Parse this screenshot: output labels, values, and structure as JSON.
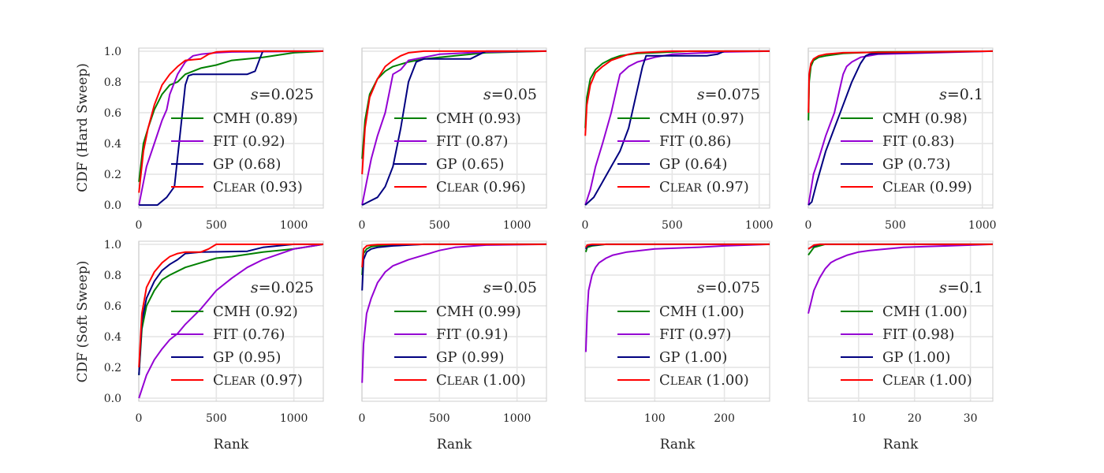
{
  "colors": {
    "CMH": "#008000",
    "FIT": "#9400d3",
    "GP": "#000080",
    "CLEAR": "#ff0000",
    "grid": "#e6e6e6",
    "frame": "#cccccc"
  },
  "row_labels": [
    "CDF (Hard Sweep)",
    "CDF (Soft Sweep)"
  ],
  "xlabel": "Rank",
  "chart_data": [
    {
      "type": "line",
      "row": 0,
      "col": 0,
      "annotation": "s=0.025",
      "s_value": "0.025",
      "xlim": [
        0,
        1190
      ],
      "ylim": [
        -0.02,
        1.02
      ],
      "xticks": [
        0,
        500,
        1000
      ],
      "yticks": [
        0.0,
        0.2,
        0.4,
        0.6,
        0.8,
        1.0
      ],
      "series": [
        {
          "key": "CMH",
          "name": "CMH (0.89)",
          "x": [
            1,
            30,
            60,
            100,
            150,
            200,
            250,
            300,
            400,
            500,
            600,
            800,
            1000,
            1190
          ],
          "y": [
            0.15,
            0.4,
            0.5,
            0.62,
            0.72,
            0.78,
            0.8,
            0.85,
            0.89,
            0.91,
            0.94,
            0.96,
            0.99,
            1.0
          ]
        },
        {
          "key": "FIT",
          "name": "FIT (0.92)",
          "x": [
            1,
            50,
            100,
            150,
            180,
            200,
            250,
            300,
            350,
            400,
            500,
            600,
            1190
          ],
          "y": [
            0.0,
            0.25,
            0.4,
            0.55,
            0.62,
            0.72,
            0.85,
            0.93,
            0.97,
            0.98,
            0.99,
            0.995,
            1.0
          ]
        },
        {
          "key": "GP",
          "name": "GP (0.68)",
          "x": [
            1,
            120,
            180,
            230,
            260,
            300,
            320,
            350,
            700,
            750,
            780,
            800,
            1000,
            1190
          ],
          "y": [
            0.0,
            0.0,
            0.05,
            0.12,
            0.4,
            0.78,
            0.84,
            0.85,
            0.85,
            0.87,
            0.95,
            1.0,
            1.0,
            1.0
          ]
        },
        {
          "key": "CLEAR",
          "name": "CLEAR (0.93)",
          "x": [
            1,
            30,
            60,
            100,
            150,
            200,
            250,
            300,
            400,
            450,
            500,
            600,
            1190
          ],
          "y": [
            0.08,
            0.35,
            0.5,
            0.65,
            0.78,
            0.85,
            0.9,
            0.94,
            0.95,
            0.98,
            0.995,
            1.0,
            1.0
          ]
        }
      ]
    },
    {
      "type": "line",
      "row": 0,
      "col": 1,
      "annotation": "s=0.05",
      "s_value": "0.05",
      "xlim": [
        0,
        1190
      ],
      "ylim": [
        -0.02,
        1.02
      ],
      "xticks": [
        0,
        500,
        1000
      ],
      "yticks": [
        0.0,
        0.2,
        0.4,
        0.6,
        0.8,
        1.0
      ],
      "series": [
        {
          "key": "CMH",
          "name": "CMH (0.93)",
          "x": [
            1,
            20,
            50,
            100,
            150,
            200,
            300,
            400,
            600,
            800,
            1190
          ],
          "y": [
            0.3,
            0.55,
            0.72,
            0.82,
            0.87,
            0.9,
            0.93,
            0.95,
            0.97,
            0.99,
            1.0
          ]
        },
        {
          "key": "FIT",
          "name": "FIT (0.87)",
          "x": [
            1,
            30,
            60,
            100,
            150,
            180,
            200,
            250,
            300,
            400,
            500,
            800,
            1190
          ],
          "y": [
            0.0,
            0.15,
            0.3,
            0.45,
            0.6,
            0.75,
            0.85,
            0.88,
            0.94,
            0.96,
            0.98,
            0.995,
            1.0
          ]
        },
        {
          "key": "GP",
          "name": "GP (0.65)",
          "x": [
            1,
            100,
            150,
            200,
            250,
            300,
            350,
            400,
            700,
            760,
            800,
            1190
          ],
          "y": [
            0.0,
            0.05,
            0.12,
            0.25,
            0.5,
            0.8,
            0.93,
            0.95,
            0.95,
            0.98,
            1.0,
            1.0
          ]
        },
        {
          "key": "CLEAR",
          "name": "CLEAR (0.96)",
          "x": [
            1,
            20,
            50,
            100,
            150,
            200,
            250,
            300,
            400,
            1190
          ],
          "y": [
            0.2,
            0.5,
            0.7,
            0.82,
            0.9,
            0.94,
            0.97,
            0.99,
            1.0,
            1.0
          ]
        }
      ]
    },
    {
      "type": "line",
      "row": 0,
      "col": 2,
      "annotation": "s=0.075",
      "s_value": "0.075",
      "xlim": [
        0,
        1060
      ],
      "ylim": [
        -0.02,
        1.02
      ],
      "xticks": [
        0,
        500,
        1000
      ],
      "yticks": [
        0.0,
        0.2,
        0.4,
        0.6,
        0.8,
        1.0
      ],
      "series": [
        {
          "key": "CMH",
          "name": "CMH (0.97)",
          "x": [
            1,
            10,
            30,
            60,
            100,
            150,
            200,
            300,
            400,
            600,
            1060
          ],
          "y": [
            0.5,
            0.7,
            0.82,
            0.88,
            0.92,
            0.95,
            0.97,
            0.985,
            0.99,
            1.0,
            1.0
          ]
        },
        {
          "key": "FIT",
          "name": "FIT (0.86)",
          "x": [
            1,
            30,
            60,
            100,
            150,
            180,
            200,
            250,
            300,
            400,
            500,
            800,
            1060
          ],
          "y": [
            0.0,
            0.1,
            0.25,
            0.4,
            0.6,
            0.75,
            0.85,
            0.9,
            0.93,
            0.96,
            0.98,
            0.995,
            1.0
          ]
        },
        {
          "key": "GP",
          "name": "GP (0.64)",
          "x": [
            1,
            50,
            100,
            150,
            200,
            250,
            300,
            330,
            350,
            400,
            700,
            760,
            800,
            1060
          ],
          "y": [
            0.0,
            0.05,
            0.15,
            0.25,
            0.35,
            0.5,
            0.75,
            0.9,
            0.97,
            0.97,
            0.97,
            0.98,
            1.0,
            1.0
          ]
        },
        {
          "key": "CLEAR",
          "name": "CLEAR (0.97)",
          "x": [
            1,
            10,
            30,
            60,
            100,
            150,
            200,
            250,
            300,
            500,
            1060
          ],
          "y": [
            0.45,
            0.65,
            0.78,
            0.86,
            0.9,
            0.94,
            0.96,
            0.98,
            0.99,
            1.0,
            1.0
          ]
        }
      ]
    },
    {
      "type": "line",
      "row": 0,
      "col": 3,
      "annotation": "s=0.1",
      "s_value": "0.1",
      "xlim": [
        0,
        1060
      ],
      "ylim": [
        -0.02,
        1.02
      ],
      "xticks": [
        0,
        500,
        1000
      ],
      "yticks": [
        0.0,
        0.2,
        0.4,
        0.6,
        0.8,
        1.0
      ],
      "series": [
        {
          "key": "CMH",
          "name": "CMH (0.98)",
          "x": [
            1,
            5,
            15,
            30,
            60,
            100,
            200,
            400,
            1060
          ],
          "y": [
            0.55,
            0.8,
            0.9,
            0.94,
            0.96,
            0.97,
            0.985,
            0.995,
            1.0
          ]
        },
        {
          "key": "FIT",
          "name": "FIT (0.83)",
          "x": [
            1,
            30,
            60,
            100,
            150,
            180,
            200,
            220,
            250,
            300,
            400,
            1060
          ],
          "y": [
            0.0,
            0.2,
            0.3,
            0.45,
            0.6,
            0.75,
            0.85,
            0.9,
            0.93,
            0.96,
            0.98,
            1.0
          ]
        },
        {
          "key": "GP",
          "name": "GP (0.73)",
          "x": [
            1,
            20,
            50,
            100,
            150,
            200,
            250,
            300,
            330,
            350,
            400,
            500,
            1060
          ],
          "y": [
            0.0,
            0.02,
            0.15,
            0.35,
            0.5,
            0.65,
            0.8,
            0.92,
            0.97,
            0.98,
            0.985,
            0.99,
            1.0
          ]
        },
        {
          "key": "CLEAR",
          "name": "CLEAR (0.99)",
          "x": [
            1,
            5,
            15,
            30,
            60,
            100,
            200,
            1060
          ],
          "y": [
            0.6,
            0.85,
            0.92,
            0.95,
            0.97,
            0.98,
            0.99,
            1.0
          ]
        }
      ]
    },
    {
      "type": "line",
      "row": 1,
      "col": 0,
      "annotation": "s=0.025",
      "s_value": "0.025",
      "xlim": [
        0,
        1190
      ],
      "ylim": [
        -0.02,
        1.02
      ],
      "xticks": [
        0,
        500,
        1000
      ],
      "yticks": [
        0.0,
        0.2,
        0.4,
        0.6,
        0.8,
        1.0
      ],
      "series": [
        {
          "key": "CMH",
          "name": "CMH (0.92)",
          "x": [
            1,
            20,
            50,
            100,
            150,
            200,
            300,
            400,
            500,
            600,
            800,
            1000,
            1190
          ],
          "y": [
            0.15,
            0.45,
            0.6,
            0.7,
            0.77,
            0.8,
            0.85,
            0.88,
            0.91,
            0.92,
            0.95,
            0.97,
            1.0
          ]
        },
        {
          "key": "FIT",
          "name": "FIT (0.76)",
          "x": [
            1,
            50,
            100,
            150,
            200,
            250,
            300,
            400,
            500,
            600,
            700,
            800,
            1000,
            1190
          ],
          "y": [
            0.0,
            0.15,
            0.25,
            0.32,
            0.38,
            0.42,
            0.48,
            0.58,
            0.7,
            0.78,
            0.85,
            0.9,
            0.97,
            1.0
          ]
        },
        {
          "key": "GP",
          "name": "GP (0.95)",
          "x": [
            1,
            20,
            50,
            100,
            150,
            200,
            250,
            300,
            400,
            700,
            800,
            1000,
            1190
          ],
          "y": [
            0.15,
            0.5,
            0.65,
            0.76,
            0.83,
            0.87,
            0.9,
            0.94,
            0.95,
            0.955,
            0.98,
            1.0,
            1.0
          ]
        },
        {
          "key": "CLEAR",
          "name": "CLEAR (0.97)",
          "x": [
            1,
            20,
            50,
            100,
            150,
            200,
            250,
            300,
            400,
            450,
            500,
            1190
          ],
          "y": [
            0.2,
            0.55,
            0.72,
            0.82,
            0.88,
            0.92,
            0.94,
            0.95,
            0.95,
            0.97,
            1.0,
            1.0
          ]
        }
      ]
    },
    {
      "type": "line",
      "row": 1,
      "col": 1,
      "annotation": "s=0.05",
      "s_value": "0.05",
      "xlim": [
        0,
        1190
      ],
      "ylim": [
        -0.02,
        1.02
      ],
      "xticks": [
        0,
        500,
        1000
      ],
      "yticks": [
        0.0,
        0.2,
        0.4,
        0.6,
        0.8,
        1.0
      ],
      "series": [
        {
          "key": "CMH",
          "name": "CMH (0.99)",
          "x": [
            1,
            10,
            30,
            60,
            100,
            200,
            400,
            1190
          ],
          "y": [
            0.8,
            0.94,
            0.97,
            0.985,
            0.99,
            0.995,
            1.0,
            1.0
          ]
        },
        {
          "key": "FIT",
          "name": "FIT (0.91)",
          "x": [
            1,
            10,
            30,
            60,
            100,
            150,
            200,
            250,
            300,
            400,
            500,
            600,
            800,
            1190
          ],
          "y": [
            0.1,
            0.35,
            0.55,
            0.65,
            0.75,
            0.82,
            0.86,
            0.88,
            0.9,
            0.93,
            0.96,
            0.98,
            0.995,
            1.0
          ]
        },
        {
          "key": "GP",
          "name": "GP (0.99)",
          "x": [
            1,
            10,
            30,
            60,
            100,
            200,
            400,
            1190
          ],
          "y": [
            0.7,
            0.9,
            0.95,
            0.97,
            0.98,
            0.99,
            1.0,
            1.0
          ]
        },
        {
          "key": "CLEAR",
          "name": "CLEAR (1.00)",
          "x": [
            1,
            10,
            30,
            60,
            100,
            200,
            1190
          ],
          "y": [
            0.85,
            0.97,
            0.99,
            0.995,
            0.998,
            1.0,
            1.0
          ]
        }
      ]
    },
    {
      "type": "line",
      "row": 1,
      "col": 2,
      "annotation": "s=0.075",
      "s_value": "0.075",
      "xlim": [
        0,
        265
      ],
      "ylim": [
        -0.02,
        1.02
      ],
      "xticks": [
        100,
        200
      ],
      "yticks": [
        0.0,
        0.2,
        0.4,
        0.6,
        0.8,
        1.0
      ],
      "series": [
        {
          "key": "CMH",
          "name": "CMH (1.00)",
          "x": [
            1,
            3,
            10,
            30,
            265
          ],
          "y": [
            0.95,
            0.98,
            0.99,
            1.0,
            1.0
          ]
        },
        {
          "key": "FIT",
          "name": "FIT (0.97)",
          "x": [
            1,
            3,
            5,
            10,
            15,
            20,
            30,
            40,
            60,
            80,
            100,
            130,
            160,
            200,
            265
          ],
          "y": [
            0.3,
            0.55,
            0.7,
            0.8,
            0.85,
            0.88,
            0.91,
            0.93,
            0.95,
            0.96,
            0.97,
            0.975,
            0.98,
            0.99,
            1.0
          ]
        },
        {
          "key": "GP",
          "name": "GP (1.00)",
          "x": [
            1,
            3,
            10,
            30,
            265
          ],
          "y": [
            0.97,
            0.99,
            0.995,
            1.0,
            1.0
          ]
        },
        {
          "key": "CLEAR",
          "name": "CLEAR (1.00)",
          "x": [
            1,
            3,
            10,
            265
          ],
          "y": [
            0.98,
            0.995,
            1.0,
            1.0
          ]
        }
      ]
    },
    {
      "type": "line",
      "row": 1,
      "col": 3,
      "annotation": "s=0.1",
      "s_value": "0.1",
      "xlim": [
        1,
        34
      ],
      "ylim": [
        -0.02,
        1.02
      ],
      "xticks": [
        10,
        20,
        30
      ],
      "yticks": [
        0.0,
        0.2,
        0.4,
        0.6,
        0.8,
        1.0
      ],
      "series": [
        {
          "key": "CMH",
          "name": "CMH (1.00)",
          "x": [
            1,
            2,
            4,
            34
          ],
          "y": [
            0.93,
            0.98,
            1.0,
            1.0
          ]
        },
        {
          "key": "FIT",
          "name": "FIT (0.98)",
          "x": [
            1,
            2,
            3,
            4,
            5,
            6,
            8,
            10,
            12,
            15,
            18,
            22,
            26,
            30,
            34
          ],
          "y": [
            0.55,
            0.7,
            0.78,
            0.84,
            0.88,
            0.9,
            0.93,
            0.95,
            0.96,
            0.97,
            0.98,
            0.985,
            0.99,
            0.995,
            1.0
          ]
        },
        {
          "key": "GP",
          "name": "GP (1.00)",
          "x": [
            1,
            2,
            3,
            34
          ],
          "y": [
            0.97,
            0.99,
            1.0,
            1.0
          ]
        },
        {
          "key": "CLEAR",
          "name": "CLEAR (1.00)",
          "x": [
            1,
            2,
            3,
            34
          ],
          "y": [
            0.97,
            0.995,
            1.0,
            1.0
          ]
        }
      ]
    }
  ]
}
